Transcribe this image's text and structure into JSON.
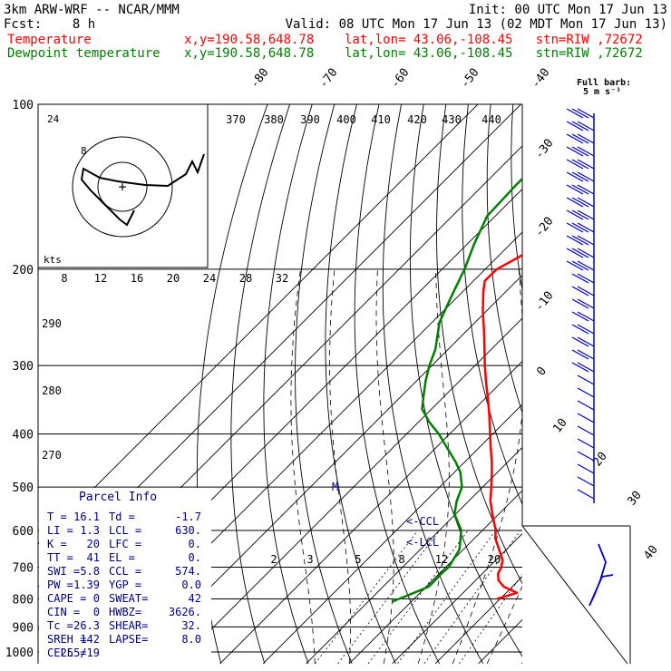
{
  "header": {
    "model": "3km ARW-WRF -- NCAR/MMM",
    "init": "Init: 00 UTC Mon 17 Jun 13",
    "fcst": "Fcst:    8 h",
    "valid": "Valid: 08 UTC Mon 17 Jun 13 (02 MDT Mon 17 Jun 13)",
    "temp_label": "Temperature",
    "dew_label": "Dewpoint temperature",
    "temp_loc": "x,y=190.58,648.78    lat,lon= 43.06,-108.45   stn=RIW ,72672",
    "dew_loc": "x,y=190.58,648.78    lat,lon= 43.06,-108.45   stn=RIW ,72672"
  },
  "colors": {
    "temperature": "#ff0000",
    "dewpoint": "#008000",
    "barbs": "#0000cc",
    "parcel": "#000080"
  },
  "barb_key": {
    "line1": "Full barb:",
    "line2": "5 m s⁻¹"
  },
  "chart_data": {
    "type": "line",
    "chart_kind": "skew-T log-p diagram",
    "pressure_labels": [
      "100",
      "200",
      "300",
      "400",
      "500",
      "600",
      "700",
      "800",
      "900",
      "1000"
    ],
    "isotherm_labels": [
      "-80",
      "-70",
      "-60",
      "-50",
      "-40",
      "-30",
      "-20",
      "-10",
      "0",
      "10",
      "20",
      "30",
      "40"
    ],
    "theta_labels": [
      "370",
      "380",
      "390",
      "400",
      "410",
      "420",
      "430",
      "440",
      "290",
      "280",
      "270"
    ],
    "mixing_ratio_labels": [
      "2",
      "3",
      "5",
      "8",
      "12",
      "20"
    ],
    "hodograph_kts_labels": [
      "8",
      "12",
      "16",
      "20",
      "24",
      "28",
      "32"
    ],
    "hodograph_axis_label": "kts",
    "hodograph_ring_labels": [
      "8",
      "24"
    ],
    "lcl_labels": [
      "<-CCL",
      "<-LCL"
    ],
    "marker_m": "M",
    "series": [
      {
        "name": "Temperature",
        "points": [
          [
            800,
            19.3
          ],
          [
            780,
            22.5
          ],
          [
            760,
            18.0
          ],
          [
            740,
            15.3
          ],
          [
            720,
            13.7
          ],
          [
            700,
            12.9
          ],
          [
            680,
            11.6
          ],
          [
            650,
            8.3
          ],
          [
            620,
            4.8
          ],
          [
            600,
            3.1
          ],
          [
            560,
            -1.5
          ],
          [
            530,
            -5.0
          ],
          [
            500,
            -8.0
          ],
          [
            470,
            -11.3
          ],
          [
            450,
            -13.7
          ],
          [
            420,
            -17.8
          ],
          [
            400,
            -20.6
          ],
          [
            370,
            -25.1
          ],
          [
            350,
            -28.4
          ],
          [
            320,
            -33.9
          ],
          [
            300,
            -37.7
          ],
          [
            280,
            -41.6
          ],
          [
            260,
            -45.8
          ],
          [
            240,
            -50.5
          ],
          [
            220,
            -55.2
          ],
          [
            210,
            -57.4
          ],
          [
            200,
            -57.3
          ],
          [
            190,
            -55.0
          ],
          [
            180,
            -53.2
          ],
          [
            170,
            -52.7
          ],
          [
            160,
            -52.1
          ],
          [
            150,
            -51.8
          ],
          [
            140,
            -53.2
          ],
          [
            130,
            -55.0
          ],
          [
            120,
            -54.7
          ],
          [
            110,
            -55.3
          ],
          [
            100,
            -56.5
          ]
        ]
      },
      {
        "name": "Dewpoint temperature",
        "points": [
          [
            810,
            -4.4
          ],
          [
            800,
            -3.5
          ],
          [
            780,
            -1.4
          ],
          [
            760,
            0.6
          ],
          [
            740,
            0.6
          ],
          [
            720,
            0.5
          ],
          [
            700,
            0.7
          ],
          [
            650,
            -0.9
          ],
          [
            600,
            -4.9
          ],
          [
            560,
            -10.3
          ],
          [
            530,
            -12.8
          ],
          [
            500,
            -14.8
          ],
          [
            470,
            -18.6
          ],
          [
            450,
            -22.1
          ],
          [
            420,
            -28.2
          ],
          [
            400,
            -32.5
          ],
          [
            380,
            -37.6
          ],
          [
            360,
            -42.2
          ],
          [
            340,
            -45.0
          ],
          [
            320,
            -47.9
          ],
          [
            300,
            -50.6
          ],
          [
            280,
            -53.0
          ],
          [
            250,
            -58.3
          ],
          [
            220,
            -62.1
          ],
          [
            200,
            -64.8
          ],
          [
            180,
            -68.4
          ],
          [
            160,
            -71.9
          ],
          [
            140,
            -72.4
          ],
          [
            120,
            -72.3
          ],
          [
            100,
            -75.2
          ]
        ]
      }
    ],
    "parcel_info": {
      "title": "Parcel Info",
      "rows": [
        [
          "T  =",
          "16.1",
          "Td =",
          "-1.7"
        ],
        [
          "LI =",
          "1.3",
          "LCL =",
          "630."
        ],
        [
          "K  =",
          "20",
          "LFC =",
          "0."
        ],
        [
          "TT =",
          "41",
          "EL =",
          "0."
        ],
        [
          "SWI =",
          "5.8",
          "CCL =",
          "574."
        ],
        [
          "PW =",
          "1.39",
          "YGP =",
          "0.0"
        ],
        [
          "CAPE =",
          "0",
          "SWEAT=",
          "42"
        ],
        [
          "CIN =",
          "0",
          "HWBZ=",
          "3626."
        ],
        [
          "Tc =",
          "26.3",
          "SHEAR=",
          "32."
        ],
        [
          "SREH =",
          "142",
          "LAPSE=",
          "8.0"
        ],
        [
          "CELL =",
          "255/19",
          "",
          ""
        ]
      ]
    }
  }
}
